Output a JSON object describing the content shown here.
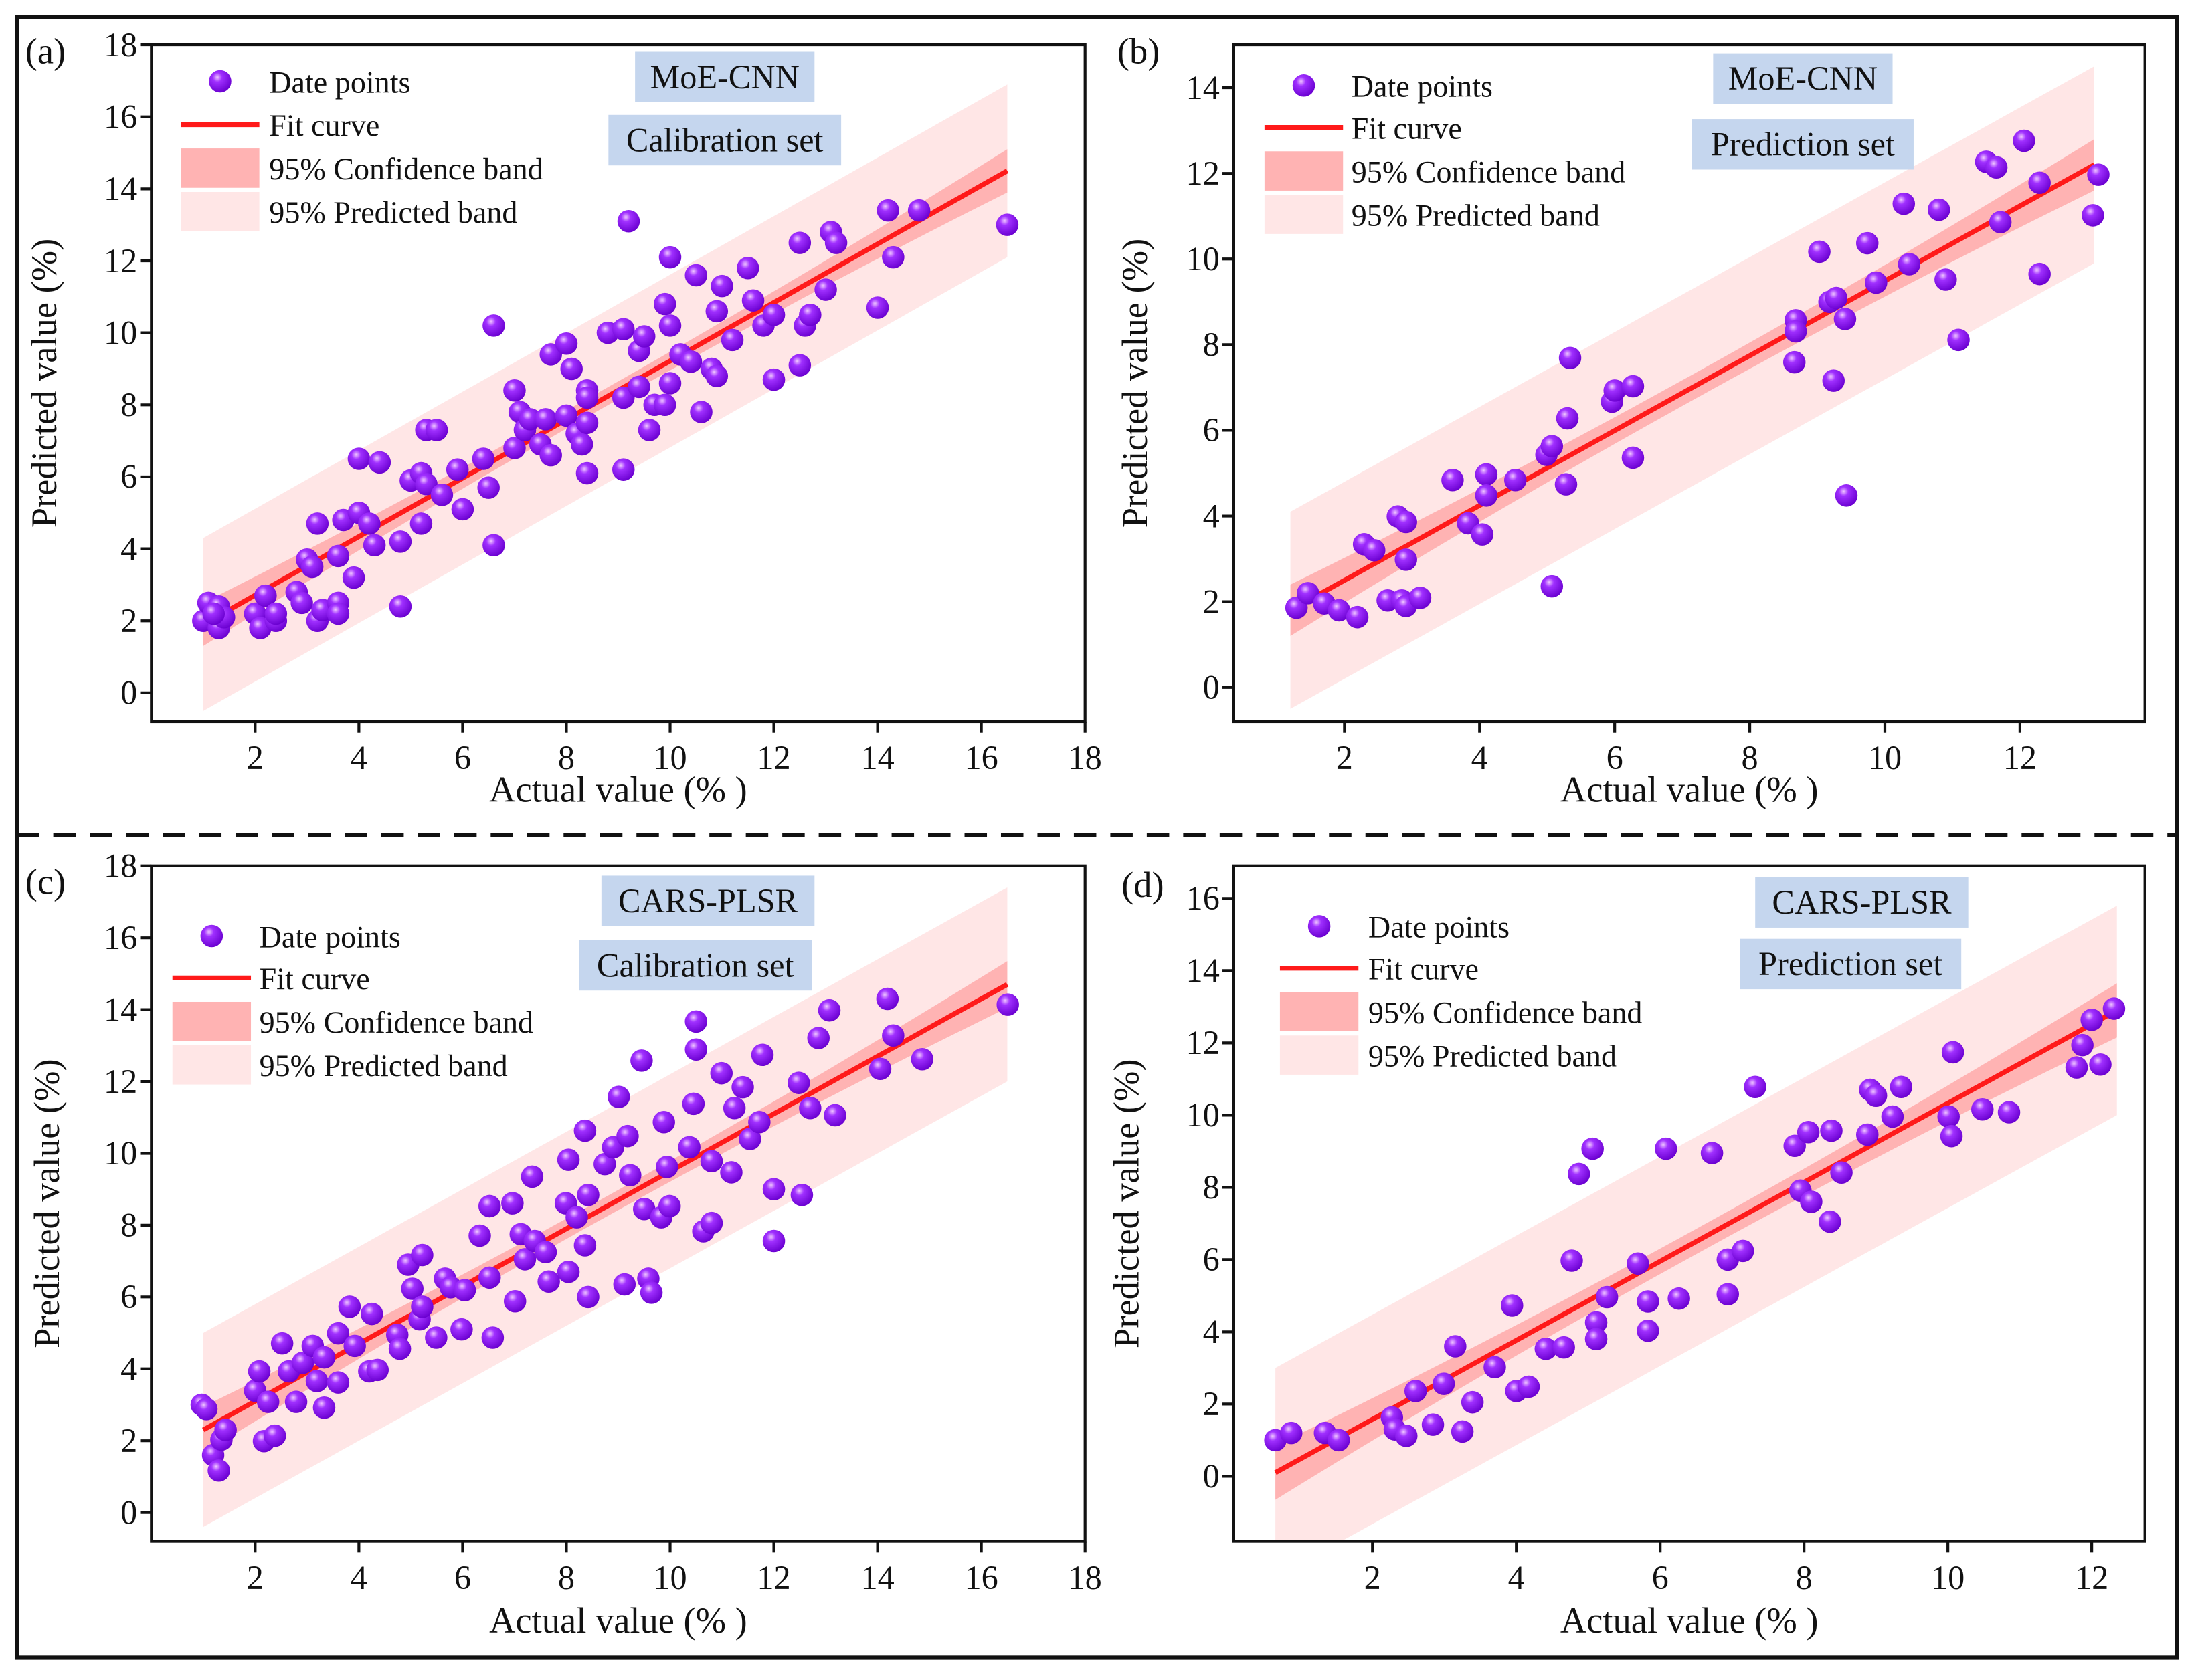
{
  "colors": {
    "point": "#8a10f0",
    "point_highlight": "#e0b0ff",
    "fit": "#ff1a1a",
    "confidence_band": "#ffb3b3",
    "predicted_band": "#ffe6e6",
    "label_box": "#c5d6ee"
  },
  "legend": {
    "points": "Date points",
    "fit": "Fit curve",
    "confidence": "95% Confidence band",
    "predicted": "95% Predicted band"
  },
  "chart_data": [
    {
      "type": "scatter",
      "panel_label": "(a)",
      "model": "MoE-CNN",
      "set": "Calibration set",
      "xlabel": "Actual value (% )",
      "ylabel": "Predicted value (%)",
      "xlim": [
        0,
        18
      ],
      "ylim": [
        -0.8,
        18
      ],
      "xticks": [
        2,
        4,
        6,
        8,
        10,
        12,
        14,
        16,
        18
      ],
      "yticks": [
        0,
        2,
        4,
        6,
        8,
        10,
        12,
        14,
        16,
        18
      ],
      "fit": {
        "x": [
          1.0,
          16.5
        ],
        "y": [
          1.9,
          14.5
        ]
      },
      "confidence_halfwidth": {
        "ends": 0.6,
        "center": 0.25
      },
      "predicted_halfwidth": 2.4,
      "points": [
        [
          1.0,
          2.0
        ],
        [
          1.1,
          2.5
        ],
        [
          1.3,
          2.4
        ],
        [
          1.3,
          1.8
        ],
        [
          1.4,
          2.1
        ],
        [
          1.2,
          2.2
        ],
        [
          2.0,
          2.2
        ],
        [
          2.1,
          1.8
        ],
        [
          2.2,
          2.7
        ],
        [
          2.4,
          2.0
        ],
        [
          2.4,
          2.2
        ],
        [
          2.8,
          2.8
        ],
        [
          2.9,
          2.5
        ],
        [
          3.0,
          3.7
        ],
        [
          3.1,
          3.5
        ],
        [
          3.2,
          4.7
        ],
        [
          3.2,
          2.0
        ],
        [
          3.3,
          2.3
        ],
        [
          3.6,
          2.5
        ],
        [
          3.6,
          2.2
        ],
        [
          3.6,
          3.8
        ],
        [
          3.7,
          4.8
        ],
        [
          3.9,
          3.2
        ],
        [
          4.0,
          5.0
        ],
        [
          4.0,
          6.5
        ],
        [
          4.2,
          4.7
        ],
        [
          4.3,
          4.1
        ],
        [
          4.4,
          6.4
        ],
        [
          4.8,
          4.2
        ],
        [
          4.8,
          2.4
        ],
        [
          5.0,
          5.9
        ],
        [
          5.2,
          6.1
        ],
        [
          5.2,
          4.7
        ],
        [
          5.3,
          5.8
        ],
        [
          5.3,
          7.3
        ],
        [
          5.5,
          7.3
        ],
        [
          5.6,
          5.5
        ],
        [
          5.9,
          6.2
        ],
        [
          6.0,
          5.1
        ],
        [
          6.4,
          6.5
        ],
        [
          6.5,
          5.7
        ],
        [
          6.6,
          10.2
        ],
        [
          6.6,
          4.1
        ],
        [
          7.0,
          6.8
        ],
        [
          7.0,
          8.4
        ],
        [
          7.1,
          7.8
        ],
        [
          7.2,
          7.3
        ],
        [
          7.3,
          7.6
        ],
        [
          7.5,
          6.9
        ],
        [
          7.6,
          7.6
        ],
        [
          7.7,
          6.6
        ],
        [
          7.7,
          9.4
        ],
        [
          8.0,
          7.7
        ],
        [
          8.0,
          9.7
        ],
        [
          8.1,
          9.0
        ],
        [
          8.2,
          7.2
        ],
        [
          8.3,
          6.9
        ],
        [
          8.4,
          8.4
        ],
        [
          8.4,
          7.5
        ],
        [
          8.4,
          6.1
        ],
        [
          8.4,
          8.2
        ],
        [
          8.8,
          10.0
        ],
        [
          9.1,
          10.1
        ],
        [
          9.1,
          6.2
        ],
        [
          9.1,
          8.2
        ],
        [
          9.2,
          13.1
        ],
        [
          9.4,
          8.5
        ],
        [
          9.4,
          9.5
        ],
        [
          9.5,
          9.9
        ],
        [
          9.6,
          7.3
        ],
        [
          9.7,
          8.0
        ],
        [
          9.9,
          8.0
        ],
        [
          9.9,
          10.8
        ],
        [
          10.0,
          8.6
        ],
        [
          10.0,
          10.2
        ],
        [
          10.0,
          12.1
        ],
        [
          10.2,
          9.4
        ],
        [
          10.4,
          9.2
        ],
        [
          10.5,
          11.6
        ],
        [
          10.6,
          7.8
        ],
        [
          10.8,
          9.0
        ],
        [
          10.9,
          8.8
        ],
        [
          10.9,
          10.6
        ],
        [
          11.0,
          11.3
        ],
        [
          11.2,
          9.8
        ],
        [
          11.5,
          11.8
        ],
        [
          11.6,
          10.9
        ],
        [
          11.8,
          10.2
        ],
        [
          12.0,
          10.5
        ],
        [
          12.0,
          8.7
        ],
        [
          12.5,
          12.5
        ],
        [
          12.5,
          9.1
        ],
        [
          12.6,
          10.2
        ],
        [
          12.7,
          10.5
        ],
        [
          13.0,
          11.2
        ],
        [
          13.1,
          12.8
        ],
        [
          13.2,
          12.5
        ],
        [
          14.0,
          10.7
        ],
        [
          14.2,
          13.4
        ],
        [
          14.3,
          12.1
        ],
        [
          14.8,
          13.4
        ],
        [
          16.5,
          13.0
        ]
      ]
    },
    {
      "type": "scatter",
      "panel_label": "(b)",
      "model": "MoE-CNN",
      "set": "Prediction set",
      "xlabel": "Actual value (% )",
      "ylabel": "Predicted value (%)",
      "xlim": [
        0.36,
        13.85
      ],
      "ylim": [
        -0.8,
        15
      ],
      "xticks": [
        2,
        4,
        6,
        8,
        10,
        12
      ],
      "yticks": [
        0,
        2,
        4,
        6,
        8,
        10,
        12,
        14
      ],
      "fit": {
        "x": [
          1.2,
          13.1
        ],
        "y": [
          1.8,
          12.2
        ]
      },
      "confidence_halfwidth": {
        "ends": 0.6,
        "center": 0.3
      },
      "predicted_halfwidth": 2.3,
      "points": [
        [
          1.29,
          1.86
        ],
        [
          1.46,
          2.2
        ],
        [
          1.7,
          1.96
        ],
        [
          1.92,
          1.8
        ],
        [
          2.19,
          1.64
        ],
        [
          2.29,
          3.34
        ],
        [
          2.44,
          3.2
        ],
        [
          2.64,
          2.03
        ],
        [
          2.79,
          3.99
        ],
        [
          2.85,
          2.03
        ],
        [
          2.91,
          2.98
        ],
        [
          2.91,
          1.9
        ],
        [
          2.91,
          3.86
        ],
        [
          3.12,
          2.09
        ],
        [
          3.6,
          4.84
        ],
        [
          3.83,
          3.83
        ],
        [
          4.04,
          3.57
        ],
        [
          4.1,
          4.97
        ],
        [
          4.1,
          4.48
        ],
        [
          4.53,
          4.84
        ],
        [
          4.99,
          5.43
        ],
        [
          5.07,
          5.63
        ],
        [
          5.07,
          2.36
        ],
        [
          5.28,
          4.74
        ],
        [
          5.3,
          6.28
        ],
        [
          5.34,
          7.69
        ],
        [
          5.96,
          6.67
        ],
        [
          6.0,
          6.93
        ],
        [
          6.27,
          7.03
        ],
        [
          6.27,
          5.36
        ],
        [
          8.66,
          7.59
        ],
        [
          8.68,
          8.57
        ],
        [
          8.68,
          8.31
        ],
        [
          9.03,
          10.17
        ],
        [
          9.18,
          9.0
        ],
        [
          9.28,
          9.09
        ],
        [
          9.24,
          7.16
        ],
        [
          9.41,
          8.6
        ],
        [
          9.43,
          4.48
        ],
        [
          9.74,
          10.37
        ],
        [
          9.87,
          9.45
        ],
        [
          10.28,
          11.29
        ],
        [
          10.36,
          9.88
        ],
        [
          10.8,
          11.15
        ],
        [
          10.9,
          9.52
        ],
        [
          11.09,
          8.11
        ],
        [
          11.5,
          12.27
        ],
        [
          11.65,
          12.14
        ],
        [
          11.71,
          10.86
        ],
        [
          12.06,
          12.76
        ],
        [
          12.29,
          11.78
        ],
        [
          12.29,
          9.65
        ],
        [
          13.08,
          11.02
        ],
        [
          13.16,
          11.97
        ]
      ]
    },
    {
      "type": "scatter",
      "panel_label": "(c)",
      "model": "CARS-PLSR",
      "set": "Calibration set",
      "xlabel": "Actual value (% )",
      "ylabel": "Predicted value (%)",
      "xlim": [
        0,
        18
      ],
      "ylim": [
        -0.8,
        18
      ],
      "xticks": [
        2,
        4,
        6,
        8,
        10,
        12,
        14,
        16,
        18
      ],
      "yticks": [
        0,
        2,
        4,
        6,
        8,
        10,
        12,
        14,
        16,
        18
      ],
      "fit": {
        "x": [
          1.0,
          16.5
        ],
        "y": [
          2.3,
          14.7
        ]
      },
      "confidence_halfwidth": {
        "ends": 0.65,
        "center": 0.28
      },
      "predicted_halfwidth": 2.7,
      "points": [
        [
          0.97,
          3.0
        ],
        [
          1.06,
          2.88
        ],
        [
          1.19,
          1.6
        ],
        [
          1.3,
          1.17
        ],
        [
          1.35,
          2.03
        ],
        [
          1.43,
          2.3
        ],
        [
          2.0,
          3.39
        ],
        [
          2.08,
          3.93
        ],
        [
          2.17,
          1.99
        ],
        [
          2.38,
          2.14
        ],
        [
          2.25,
          3.08
        ],
        [
          2.52,
          4.71
        ],
        [
          2.65,
          3.93
        ],
        [
          2.79,
          3.08
        ],
        [
          2.92,
          4.17
        ],
        [
          3.11,
          4.64
        ],
        [
          3.19,
          3.66
        ],
        [
          3.33,
          2.92
        ],
        [
          3.33,
          4.32
        ],
        [
          3.6,
          3.62
        ],
        [
          3.6,
          4.99
        ],
        [
          3.82,
          5.73
        ],
        [
          3.92,
          4.64
        ],
        [
          4.2,
          3.93
        ],
        [
          4.25,
          5.53
        ],
        [
          4.36,
          3.97
        ],
        [
          4.74,
          4.95
        ],
        [
          4.79,
          4.56
        ],
        [
          4.95,
          6.9
        ],
        [
          5.03,
          6.23
        ],
        [
          5.17,
          5.38
        ],
        [
          5.22,
          5.73
        ],
        [
          5.22,
          7.17
        ],
        [
          5.49,
          4.87
        ],
        [
          5.66,
          6.51
        ],
        [
          5.77,
          6.27
        ],
        [
          5.98,
          5.1
        ],
        [
          6.04,
          6.19
        ],
        [
          6.33,
          7.71
        ],
        [
          6.52,
          8.53
        ],
        [
          6.52,
          6.54
        ],
        [
          6.58,
          4.87
        ],
        [
          6.96,
          8.61
        ],
        [
          7.01,
          5.88
        ],
        [
          7.12,
          7.75
        ],
        [
          7.2,
          7.05
        ],
        [
          7.34,
          9.35
        ],
        [
          7.39,
          7.56
        ],
        [
          7.6,
          7.25
        ],
        [
          7.66,
          6.43
        ],
        [
          7.99,
          8.61
        ],
        [
          8.04,
          9.82
        ],
        [
          8.04,
          6.7
        ],
        [
          8.2,
          8.22
        ],
        [
          8.36,
          10.63
        ],
        [
          8.36,
          7.44
        ],
        [
          8.42,
          8.84
        ],
        [
          8.42,
          6.0
        ],
        [
          8.74,
          9.7
        ],
        [
          8.9,
          10.17
        ],
        [
          9.01,
          11.57
        ],
        [
          9.12,
          6.35
        ],
        [
          9.18,
          10.48
        ],
        [
          9.23,
          9.39
        ],
        [
          9.45,
          12.58
        ],
        [
          9.5,
          8.45
        ],
        [
          9.58,
          6.51
        ],
        [
          9.64,
          6.12
        ],
        [
          9.83,
          8.22
        ],
        [
          9.88,
          10.87
        ],
        [
          9.94,
          9.62
        ],
        [
          9.99,
          8.53
        ],
        [
          10.37,
          10.17
        ],
        [
          10.45,
          11.38
        ],
        [
          10.5,
          12.89
        ],
        [
          10.5,
          13.67
        ],
        [
          10.64,
          7.83
        ],
        [
          10.8,
          8.06
        ],
        [
          10.8,
          9.78
        ],
        [
          10.99,
          12.23
        ],
        [
          11.18,
          9.47
        ],
        [
          11.24,
          11.26
        ],
        [
          11.4,
          11.84
        ],
        [
          11.54,
          10.4
        ],
        [
          11.72,
          10.87
        ],
        [
          11.78,
          12.74
        ],
        [
          12.0,
          9.0
        ],
        [
          12.0,
          7.56
        ],
        [
          12.48,
          11.96
        ],
        [
          12.54,
          8.84
        ],
        [
          12.7,
          11.26
        ],
        [
          12.86,
          13.21
        ],
        [
          13.07,
          13.98
        ],
        [
          13.18,
          11.06
        ],
        [
          14.05,
          12.35
        ],
        [
          14.19,
          14.3
        ],
        [
          14.3,
          13.28
        ],
        [
          14.86,
          12.62
        ],
        [
          16.51,
          14.14
        ]
      ]
    },
    {
      "type": "scatter",
      "panel_label": "(d)",
      "model": "CARS-PLSR",
      "set": "Prediction set",
      "xlabel": "Actual value (% )",
      "ylabel": "Predicted value (%)",
      "xlim": [
        0.07,
        12.74
      ],
      "ylim": [
        -1.8,
        16.9
      ],
      "xticks": [
        2,
        4,
        6,
        8,
        10,
        12
      ],
      "yticks": [
        0,
        2,
        4,
        6,
        8,
        10,
        12,
        14,
        16
      ],
      "fit": {
        "x": [
          0.65,
          12.35
        ],
        "y": [
          0.1,
          12.9
        ]
      },
      "confidence_halfwidth": {
        "ends": 0.75,
        "center": 0.35
      },
      "predicted_halfwidth": 2.9,
      "points": [
        [
          0.65,
          1.0
        ],
        [
          0.87,
          1.2
        ],
        [
          1.34,
          1.2
        ],
        [
          1.53,
          1.0
        ],
        [
          2.27,
          1.63
        ],
        [
          2.31,
          1.3
        ],
        [
          2.47,
          1.12
        ],
        [
          2.6,
          2.36
        ],
        [
          2.84,
          1.43
        ],
        [
          2.99,
          2.56
        ],
        [
          3.15,
          3.6
        ],
        [
          3.25,
          1.24
        ],
        [
          3.39,
          2.05
        ],
        [
          3.7,
          3.02
        ],
        [
          3.94,
          4.73
        ],
        [
          4.0,
          2.36
        ],
        [
          4.17,
          2.48
        ],
        [
          4.41,
          3.53
        ],
        [
          4.66,
          3.57
        ],
        [
          4.77,
          5.97
        ],
        [
          4.87,
          8.37
        ],
        [
          5.06,
          9.07
        ],
        [
          5.11,
          4.26
        ],
        [
          5.11,
          3.8
        ],
        [
          5.26,
          4.96
        ],
        [
          5.69,
          5.89
        ],
        [
          5.83,
          4.84
        ],
        [
          5.83,
          4.03
        ],
        [
          6.08,
          9.07
        ],
        [
          6.26,
          4.92
        ],
        [
          6.72,
          8.95
        ],
        [
          6.94,
          6.0
        ],
        [
          6.94,
          5.04
        ],
        [
          7.15,
          6.24
        ],
        [
          7.32,
          10.78
        ],
        [
          7.87,
          9.15
        ],
        [
          7.95,
          7.91
        ],
        [
          8.06,
          9.53
        ],
        [
          8.1,
          7.6
        ],
        [
          8.36,
          7.05
        ],
        [
          8.38,
          9.57
        ],
        [
          8.52,
          8.41
        ],
        [
          8.88,
          9.46
        ],
        [
          8.92,
          10.7
        ],
        [
          9.0,
          10.54
        ],
        [
          9.23,
          9.96
        ],
        [
          9.35,
          10.78
        ],
        [
          10.01,
          9.96
        ],
        [
          10.05,
          9.42
        ],
        [
          10.07,
          11.74
        ],
        [
          10.48,
          10.16
        ],
        [
          10.85,
          10.08
        ],
        [
          11.79,
          11.32
        ],
        [
          11.87,
          11.94
        ],
        [
          12.0,
          12.64
        ],
        [
          12.12,
          11.4
        ],
        [
          12.31,
          12.95
        ]
      ]
    }
  ]
}
